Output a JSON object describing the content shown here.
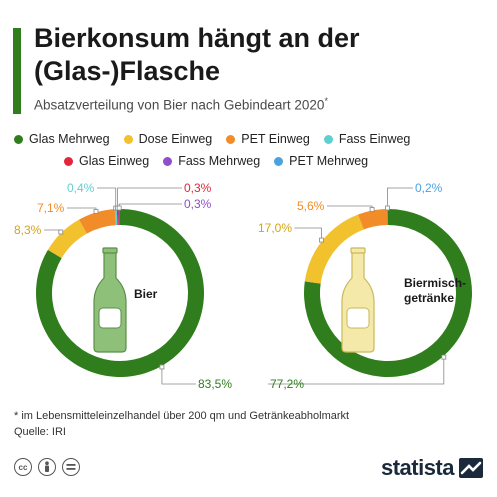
{
  "header": {
    "title": "Bierkonsum hängt an der (Glas-)Flasche",
    "subtitle": "Absatzverteilung von Bier nach Gebindeart 2020",
    "subtitle_mark": "*"
  },
  "legend": {
    "row1": [
      {
        "label": "Glas Mehrweg",
        "color": "#2f7d1c"
      },
      {
        "label": "Dose Einweg",
        "color": "#f2c12e"
      },
      {
        "label": "PET Einweg",
        "color": "#f28c28"
      },
      {
        "label": "Fass Einweg",
        "color": "#5fd0d0"
      }
    ],
    "row2": [
      {
        "label": "Glas Einweg",
        "color": "#e3263c"
      },
      {
        "label": "Fass Mehrweg",
        "color": "#8e4fc9"
      },
      {
        "label": "PET Mehrweg",
        "color": "#4aa3df"
      }
    ]
  },
  "chart_data": [
    {
      "type": "pie",
      "center_label": "Bier",
      "icon": "beer-bottle-icon",
      "slices": [
        {
          "name": "Glas Mehrweg",
          "value": 83.5,
          "label": "83,5%",
          "color": "#2f7d1c"
        },
        {
          "name": "Dose Einweg",
          "value": 8.3,
          "label": "8,3%",
          "color": "#f2c12e"
        },
        {
          "name": "PET Einweg",
          "value": 7.1,
          "label": "7,1%",
          "color": "#f28c28"
        },
        {
          "name": "Fass Einweg",
          "value": 0.4,
          "label": "0,4%",
          "color": "#5fd0d0"
        },
        {
          "name": "Glas Einweg",
          "value": 0.3,
          "label": "0,3%",
          "color": "#e3263c"
        },
        {
          "name": "Fass Mehrweg",
          "value": 0.3,
          "label": "0,3%",
          "color": "#8e4fc9"
        }
      ]
    },
    {
      "type": "pie",
      "center_label": "Biermisch-getränke",
      "icon": "beer-bottle-icon",
      "slices": [
        {
          "name": "Glas Mehrweg",
          "value": 77.2,
          "label": "77,2%",
          "color": "#2f7d1c"
        },
        {
          "name": "Dose Einweg",
          "value": 17.0,
          "label": "17,0%",
          "color": "#f2c12e"
        },
        {
          "name": "PET Einweg",
          "value": 5.6,
          "label": "5,6%",
          "color": "#f28c28"
        },
        {
          "name": "PET Mehrweg",
          "value": 0.2,
          "label": "0,2%",
          "color": "#4aa3df"
        }
      ]
    }
  ],
  "footer": {
    "footnote": "* im Lebensmitteleinzelhandel über 200 qm und Getränkeabholmarkt",
    "source": "Quelle: IRI",
    "license_icons": [
      "cc",
      "by",
      "nd"
    ],
    "brand": "statista"
  }
}
